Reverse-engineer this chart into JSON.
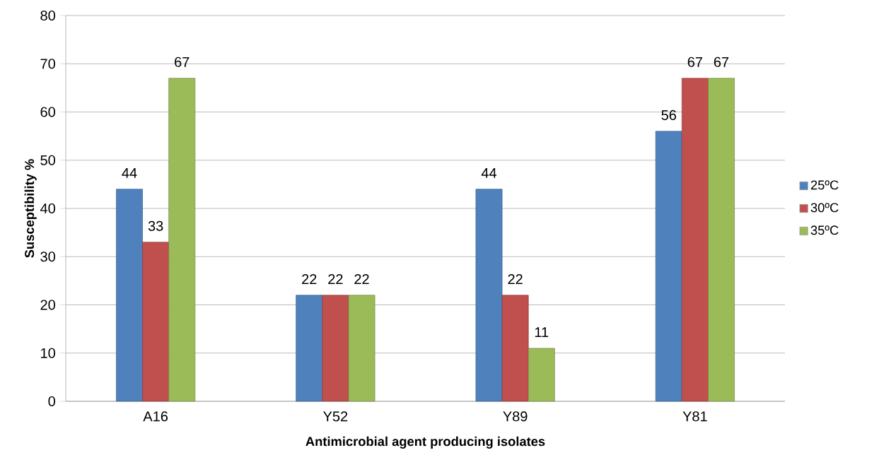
{
  "chart_data": {
    "type": "bar",
    "xlabel": "Antimicrobial agent producing isolates",
    "ylabel": "Susceptibility  %",
    "categories": [
      "A16",
      "Y52",
      "Y89",
      "Y81"
    ],
    "series": [
      {
        "name": "25ºC",
        "color": "#4f81bd",
        "values": [
          44,
          22,
          44,
          56
        ]
      },
      {
        "name": "30ºC",
        "color": "#c0504d",
        "values": [
          33,
          22,
          22,
          67
        ]
      },
      {
        "name": "35ºC",
        "color": "#9bbb59",
        "values": [
          67,
          22,
          11,
          67
        ]
      }
    ],
    "ylim": [
      0,
      80
    ],
    "yticks": [
      0,
      10,
      20,
      30,
      40,
      50,
      60,
      70,
      80
    ],
    "grid": "y",
    "legend": "right",
    "data_labels": true
  }
}
